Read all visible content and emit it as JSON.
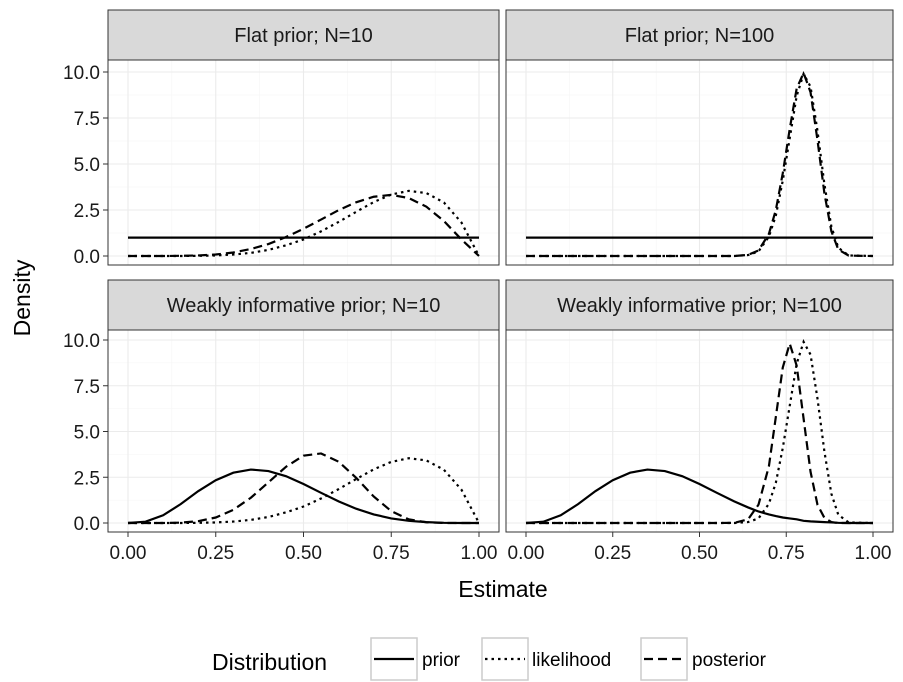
{
  "chart_data": {
    "type": "line",
    "xlabel": "Estimate",
    "ylabel": "Density",
    "xlim": [
      0,
      1
    ],
    "ylim": [
      0,
      10
    ],
    "x_ticks": [
      "0.00",
      "0.25",
      "0.50",
      "0.75",
      "1.00"
    ],
    "y_ticks": [
      "0.0",
      "2.5",
      "5.0",
      "7.5",
      "10.0"
    ],
    "grid": true,
    "legend": {
      "title": "Distribution",
      "position": "bottom",
      "entries": [
        {
          "label": "prior",
          "linetype": "solid"
        },
        {
          "label": "likelihood",
          "linetype": "dotted"
        },
        {
          "label": "posterior",
          "linetype": "dashed"
        }
      ]
    },
    "panels": [
      {
        "title": "Flat prior; N=10",
        "x": [
          0.0,
          0.05,
          0.1,
          0.15,
          0.2,
          0.25,
          0.3,
          0.35,
          0.4,
          0.45,
          0.5,
          0.55,
          0.6,
          0.65,
          0.7,
          0.75,
          0.8,
          0.85,
          0.9,
          0.95,
          1.0
        ],
        "series": [
          {
            "name": "prior",
            "values": [
              1,
              1,
              1,
              1,
              1,
              1,
              1,
              1,
              1,
              1,
              1,
              1,
              1,
              1,
              1,
              1,
              1,
              1,
              1,
              1,
              1
            ]
          },
          {
            "name": "likelihood",
            "values": [
              0,
              0,
              0,
              0,
              0.01,
              0.03,
              0.08,
              0.17,
              0.33,
              0.58,
              0.9,
              1.34,
              1.85,
              2.4,
              2.93,
              3.34,
              3.54,
              3.42,
              2.91,
              1.82,
              0
            ]
          },
          {
            "name": "posterior",
            "values": [
              0,
              0,
              0,
              0.01,
              0.03,
              0.08,
              0.19,
              0.38,
              0.65,
              1.03,
              1.48,
              1.98,
              2.49,
              2.92,
              3.22,
              3.32,
              3.15,
              2.68,
              1.9,
              0.9,
              0
            ]
          }
        ]
      },
      {
        "title": "Flat prior; N=100",
        "x": [
          0.0,
          0.6,
          0.64,
          0.67,
          0.7,
          0.72,
          0.74,
          0.76,
          0.78,
          0.8,
          0.82,
          0.84,
          0.86,
          0.88,
          0.9,
          0.93,
          1.0
        ],
        "series": [
          {
            "name": "prior",
            "values": [
              1,
              1,
              1,
              1,
              1,
              1,
              1,
              1,
              1,
              1,
              1,
              1,
              1,
              1,
              1,
              1,
              1
            ]
          },
          {
            "name": "likelihood",
            "values": [
              0,
              0,
              0.05,
              0.25,
              1.05,
              2.2,
              4.1,
              6.4,
              8.7,
              9.9,
              9.2,
              6.8,
              3.9,
              1.6,
              0.45,
              0.03,
              0
            ]
          },
          {
            "name": "posterior",
            "values": [
              0,
              0,
              0.06,
              0.3,
              1.2,
              2.5,
              4.5,
              6.9,
              9.1,
              9.95,
              8.9,
              6.3,
              3.4,
              1.35,
              0.35,
              0.02,
              0
            ]
          }
        ]
      },
      {
        "title": "Weakly informative prior; N=10",
        "x": [
          0.0,
          0.05,
          0.1,
          0.15,
          0.2,
          0.25,
          0.3,
          0.35,
          0.4,
          0.45,
          0.5,
          0.55,
          0.6,
          0.65,
          0.7,
          0.75,
          0.8,
          0.85,
          0.9,
          0.95,
          1.0
        ],
        "series": [
          {
            "name": "prior",
            "values": [
              0,
              0.07,
              0.42,
              1.03,
              1.74,
              2.34,
              2.75,
              2.92,
              2.84,
              2.56,
              2.13,
              1.65,
              1.18,
              0.78,
              0.47,
              0.25,
              0.12,
              0.05,
              0.01,
              0,
              0
            ]
          },
          {
            "name": "likelihood",
            "values": [
              0,
              0,
              0,
              0,
              0.01,
              0.03,
              0.08,
              0.17,
              0.33,
              0.58,
              0.9,
              1.34,
              1.85,
              2.4,
              2.93,
              3.34,
              3.54,
              3.42,
              2.91,
              1.82,
              0
            ]
          },
          {
            "name": "posterior",
            "values": [
              0,
              0,
              0,
              0.02,
              0.1,
              0.3,
              0.72,
              1.38,
              2.22,
              3.07,
              3.68,
              3.8,
              3.35,
              2.47,
              1.45,
              0.65,
              0.2,
              0.04,
              0,
              0,
              0
            ]
          }
        ]
      },
      {
        "title": "Weakly informative prior; N=100",
        "x": [
          0.0,
          0.05,
          0.1,
          0.15,
          0.2,
          0.25,
          0.3,
          0.35,
          0.4,
          0.45,
          0.5,
          0.55,
          0.6,
          0.64,
          0.67,
          0.7,
          0.72,
          0.74,
          0.76,
          0.78,
          0.8,
          0.82,
          0.84,
          0.86,
          0.88,
          0.9,
          0.93,
          1.0
        ],
        "series": [
          {
            "name": "prior",
            "values": [
              0,
              0.07,
              0.42,
              1.03,
              1.74,
              2.34,
              2.75,
              2.92,
              2.84,
              2.56,
              2.13,
              1.65,
              1.18,
              0.85,
              0.63,
              0.47,
              0.38,
              0.3,
              0.25,
              0.2,
              0.12,
              0.09,
              0.07,
              0.05,
              0.03,
              0.01,
              0,
              0
            ]
          },
          {
            "name": "likelihood",
            "values": [
              0,
              0,
              0,
              0,
              0,
              0,
              0,
              0,
              0,
              0,
              0,
              0,
              0,
              0.05,
              0.25,
              1.05,
              2.2,
              4.1,
              6.4,
              8.7,
              9.9,
              9.2,
              6.8,
              3.9,
              1.6,
              0.45,
              0.03,
              0
            ]
          },
          {
            "name": "posterior",
            "values": [
              0,
              0,
              0,
              0,
              0,
              0,
              0,
              0,
              0,
              0,
              0,
              0,
              0.01,
              0.2,
              1.0,
              3.1,
              5.8,
              8.5,
              9.8,
              8.6,
              5.7,
              2.8,
              1.0,
              0.28,
              0.05,
              0,
              0,
              0
            ]
          }
        ]
      }
    ]
  }
}
